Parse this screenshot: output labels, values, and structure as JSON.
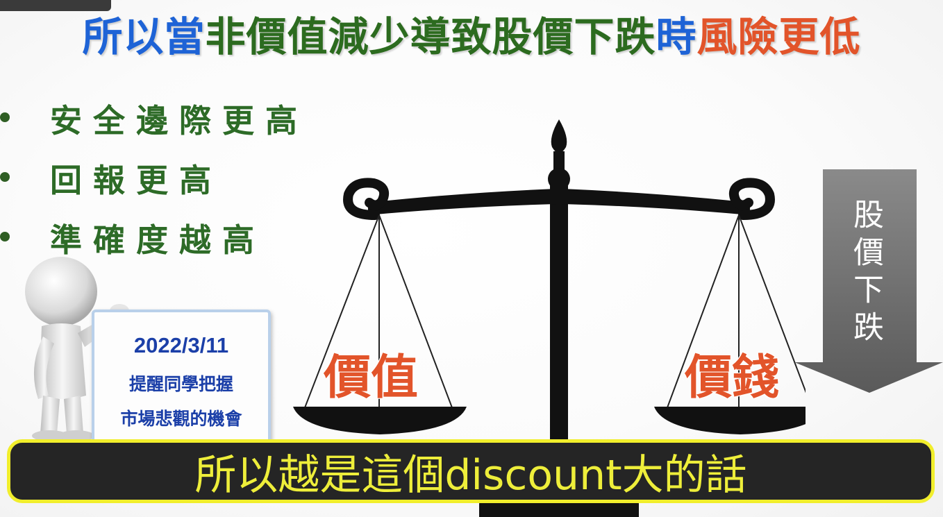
{
  "title": {
    "part1": "所以當",
    "part2": "非價值減少導致股價下跌",
    "part3": "時",
    "part4": "風險更低"
  },
  "bullets": [
    "安全邊際更高",
    "回報更高",
    "準確度越高"
  ],
  "note_card": {
    "date": "2022/3/11",
    "line1": "提醒同學把握",
    "line2": "市場悲觀的機會"
  },
  "scale": {
    "left_pan_label": "價值",
    "right_pan_label": "價錢"
  },
  "arrow": {
    "label": "股價下跌"
  },
  "subtitle": {
    "text": "所以越是這個discount大的話"
  },
  "colors": {
    "title_blue": "#1e63d6",
    "title_green": "#2c6b1f",
    "title_red": "#e2542a",
    "bullet_green": "#2d6b27",
    "subtitle_yellow": "#eeee3a",
    "card_blue": "#1b3fa8"
  }
}
